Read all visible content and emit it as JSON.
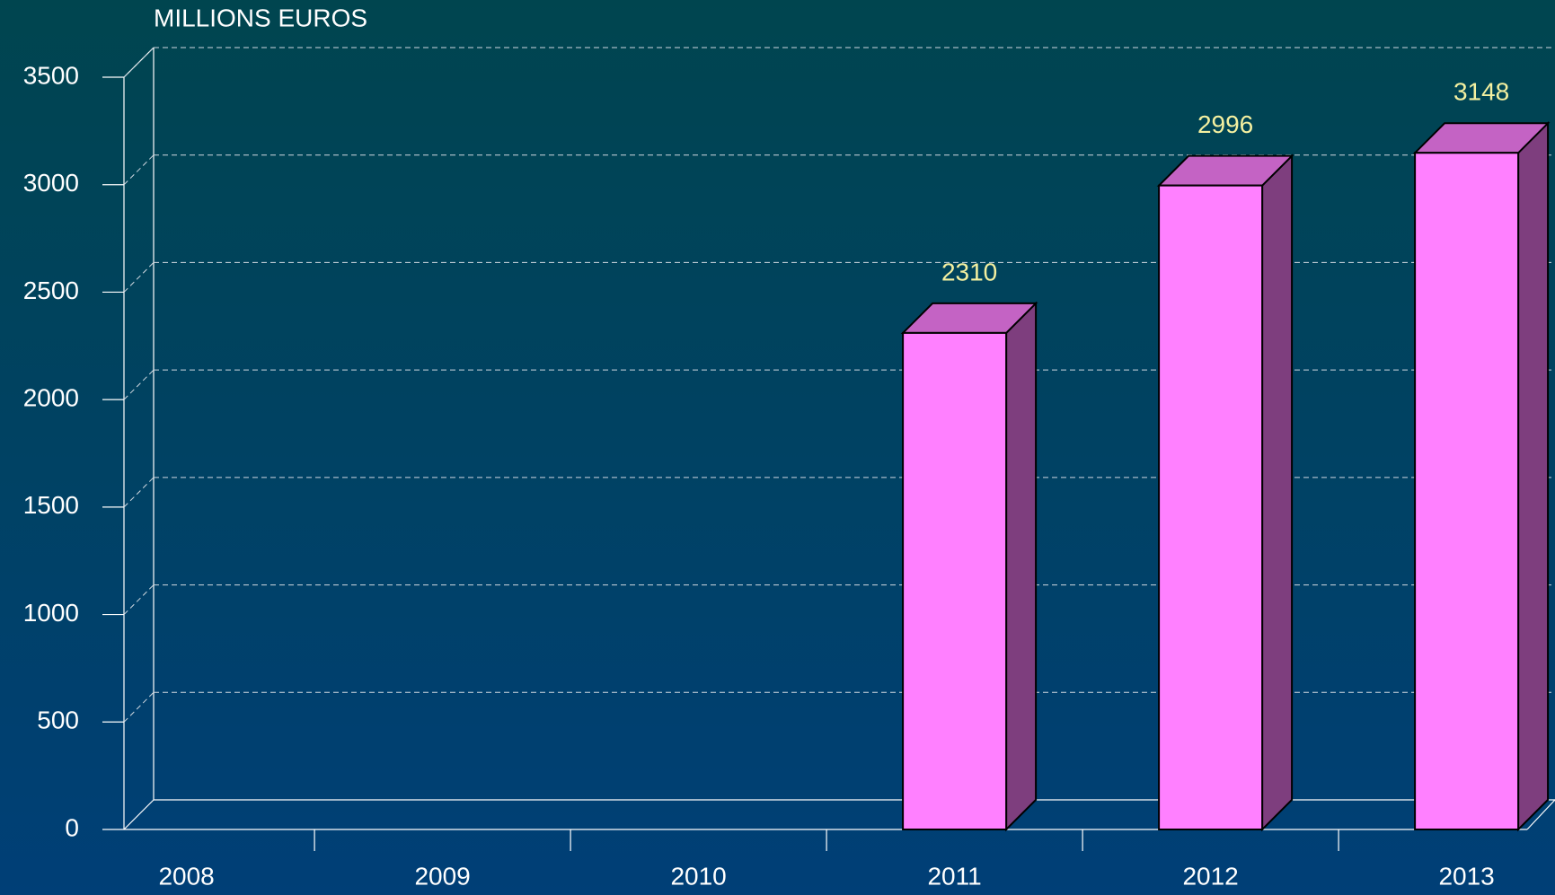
{
  "chart_data": {
    "type": "bar3d",
    "title": "MILLIONS EUROS",
    "categories": [
      "2008",
      "2009",
      "2010",
      "2011",
      "2012",
      "2013"
    ],
    "values": [
      null,
      null,
      null,
      2310,
      2996,
      3148
    ],
    "color": "#ff80ff",
    "ylim": [
      0,
      3500
    ],
    "yticks": [
      0,
      500,
      1000,
      1500,
      2000,
      2500,
      3000,
      3500
    ],
    "grid": true
  }
}
